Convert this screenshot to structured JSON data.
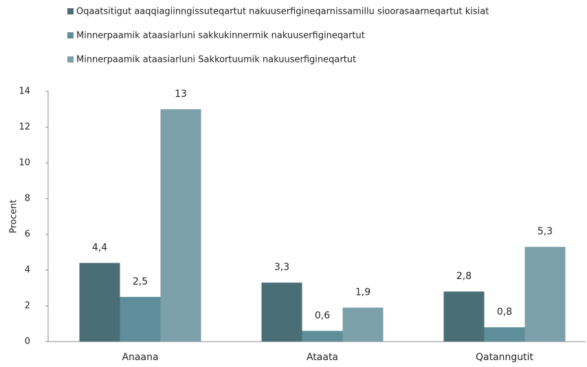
{
  "chart_data": {
    "type": "bar",
    "categories": [
      "Anaana",
      "Ataata",
      "Qatanngutit"
    ],
    "series": [
      {
        "name": "Oqaatsitigut aaqqiagiinngissuteqartut nakuuserfigineqarnissamillu sioorasaarneqartut kisiat",
        "color": "#4a6e76",
        "values": [
          4.4,
          3.3,
          2.8
        ],
        "value_labels": [
          "4,4",
          "3,3",
          "2,8"
        ]
      },
      {
        "name": "Minnerpaamik ataasiarluni sakkukinnermik nakuuserfigineqartut",
        "color": "#5f8e9a",
        "values": [
          2.5,
          0.6,
          0.8
        ],
        "value_labels": [
          "2,5",
          "0,6",
          "0,8"
        ]
      },
      {
        "name": "Minnerpaamik ataasiarluni Sakkortuumik nakuuserfigineqartut",
        "color": "#7ba0aa",
        "values": [
          13,
          1.9,
          5.3
        ],
        "value_labels": [
          "13",
          "1,9",
          "5,3"
        ]
      }
    ],
    "ylabel": "Procent",
    "ylim": [
      0,
      14
    ],
    "yticks": [
      0,
      2,
      4,
      6,
      8,
      10,
      12,
      14
    ],
    "legend": "top-left",
    "grid": false
  }
}
